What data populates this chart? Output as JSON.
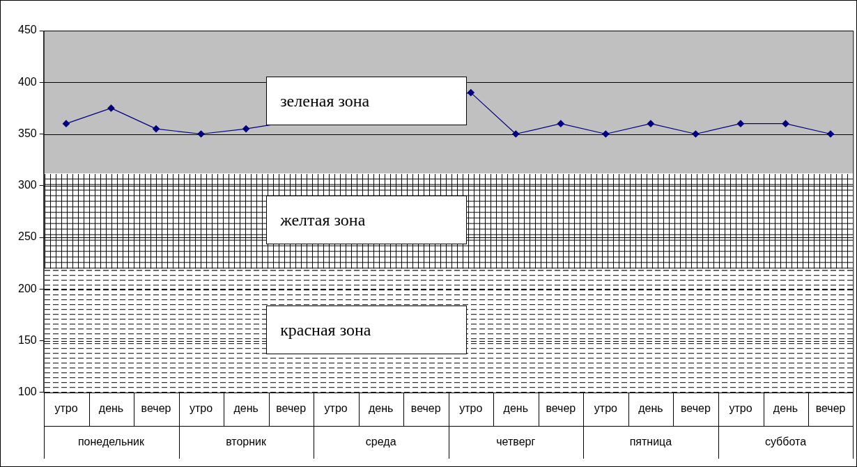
{
  "chart_data": {
    "type": "line",
    "categories": [
      "утро",
      "день",
      "вечер",
      "утро",
      "день",
      "вечер",
      "утро",
      "день",
      "вечер",
      "утро",
      "день",
      "вечер",
      "утро",
      "день",
      "вечер",
      "утро",
      "день",
      "вечер"
    ],
    "series": [
      {
        "color": "#000080",
        "values": [
          360,
          375,
          355,
          350,
          355,
          null,
          null,
          null,
          null,
          390,
          350,
          360,
          350,
          360,
          350,
          360,
          360,
          350
        ]
      }
    ],
    "marker": "diamond",
    "line_style": "solid",
    "grid": "y",
    "legend": false,
    "ylim": [
      100,
      450
    ],
    "yticks": [
      100,
      150,
      200,
      250,
      300,
      350,
      400,
      450
    ],
    "bands": [
      {
        "axis": "y",
        "from": 312,
        "to": 450,
        "label": "зеленая зона",
        "color": "#c0c0c0"
      },
      {
        "axis": "y",
        "from": 220,
        "to": 312,
        "label": "желтая зона",
        "color": "#ffffff"
      },
      {
        "axis": "y",
        "from": 100,
        "to": 220,
        "label": "красная зона",
        "color": "#ffffff"
      }
    ],
    "annotations": [
      "понедельник",
      "вторник",
      "среда",
      "четверг",
      "пятница",
      "суббота"
    ]
  }
}
